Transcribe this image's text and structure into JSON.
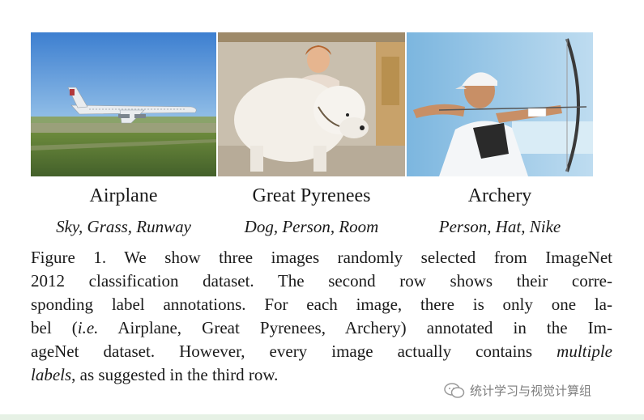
{
  "figure": {
    "images": [
      {
        "label": "Airplane",
        "tags": "Sky, Grass, Runway"
      },
      {
        "label": "Great Pyrenees",
        "tags": "Dog, Person, Room"
      },
      {
        "label": "Archery",
        "tags": "Person, Hat, Nike"
      }
    ],
    "caption": {
      "line1": "Figure 1. We show three images randomly selected from ImageNet",
      "line2": "2012 classification dataset.  The second row shows their corre-",
      "line3": "sponding label annotations. For each image, there is only one la-",
      "line4_pre": "bel (",
      "line4_em": "i.e.",
      "line4_post": " Airplane, Great Pyrenees, Archery) annotated in the Im-",
      "line5_pre": "ageNet dataset. However, every image actually contains ",
      "line5_em": "multiple",
      "line6_em": "labels",
      "line6_post": ", as suggested in the third row."
    }
  },
  "watermark": "统计学习与视觉计算组"
}
